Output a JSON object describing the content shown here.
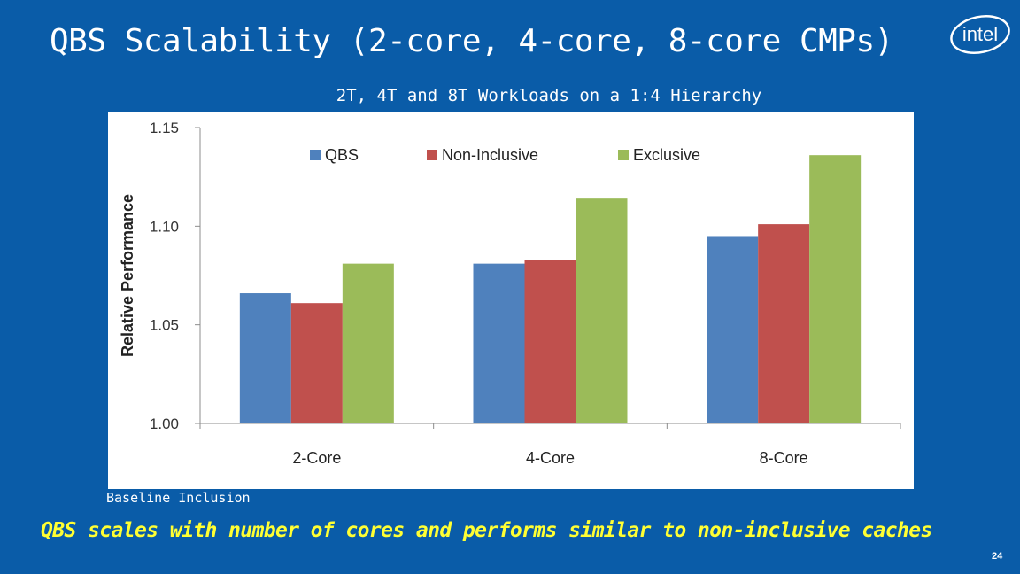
{
  "slide": {
    "title": "QBS Scalability (2-core, 4-core, 8-core CMPs)",
    "logo_text": "intel",
    "note": "Baseline Inclusion",
    "conclusion": "QBS scales with number of cores and performs similar to non-inclusive caches",
    "page_number": "24"
  },
  "colors": {
    "background": "#0a5ca8",
    "conclusion_text": "#ffff33",
    "QBS": "#4f81bd",
    "Non-Inclusive": "#c0504d",
    "Exclusive": "#9bbb59"
  },
  "chart_data": {
    "type": "bar",
    "title": "2T, 4T and 8T Workloads on a 1:4 Hierarchy",
    "xlabel": "",
    "ylabel": "Relative Performance",
    "categories": [
      "2-Core",
      "4-Core",
      "8-Core"
    ],
    "series": [
      {
        "name": "QBS",
        "values": [
          1.066,
          1.081,
          1.095
        ]
      },
      {
        "name": "Non-Inclusive",
        "values": [
          1.061,
          1.083,
          1.101
        ]
      },
      {
        "name": "Exclusive",
        "values": [
          1.081,
          1.114,
          1.136
        ]
      }
    ],
    "ylim": [
      1.0,
      1.15
    ],
    "yticks": [
      "1.00",
      "1.05",
      "1.10",
      "1.15"
    ],
    "legend_position": "top",
    "grid": false
  }
}
